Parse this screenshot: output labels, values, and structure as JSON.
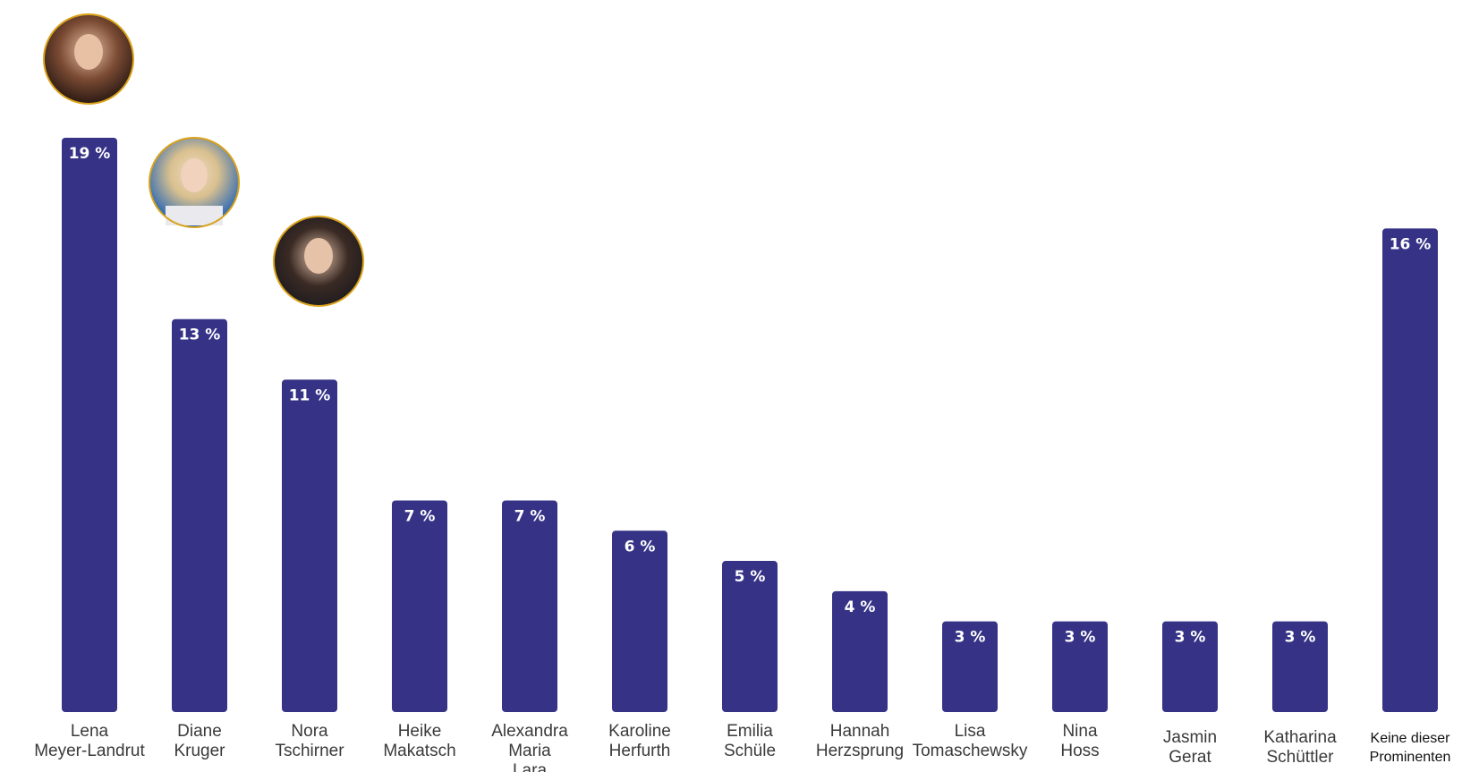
{
  "chart_data": {
    "type": "bar",
    "categories": [
      [
        "Lena",
        "Meyer-Landrut"
      ],
      [
        "Diane",
        "Kruger"
      ],
      [
        "Nora",
        "Tschirner"
      ],
      [
        "Heike",
        "Makatsch"
      ],
      [
        "Alexandra",
        "Maria",
        "Lara"
      ],
      [
        "Karoline",
        "Herfurth"
      ],
      [
        "Emilia",
        "Schüle"
      ],
      [
        "Hannah",
        "Herzsprung"
      ],
      [
        "Lisa",
        "Tomaschewsky"
      ],
      [
        "Nina",
        "Hoss"
      ],
      [
        "Jasmin",
        "Gerat"
      ],
      [
        "Katharina",
        "Schüttler"
      ],
      [
        "Keine dieser",
        "Prominenten"
      ]
    ],
    "values": [
      19,
      13,
      11,
      7,
      7,
      6,
      5,
      4,
      3,
      3,
      3,
      3,
      16
    ],
    "value_labels": [
      "19 %",
      "13 %",
      "11 %",
      "7 %",
      "7 %",
      "6 %",
      "5 %",
      "4 %",
      "3 %",
      "3 %",
      "3 %",
      "3 %",
      "16 %"
    ],
    "bar_color": "#363386",
    "portrait_ring_color": "#d9a21b",
    "portraits_on": [
      "Lena Meyer-Landrut",
      "Diane Kruger",
      "Nora Tschirner"
    ],
    "ylim": [
      0,
      19
    ],
    "grid": false,
    "legend": "none"
  }
}
